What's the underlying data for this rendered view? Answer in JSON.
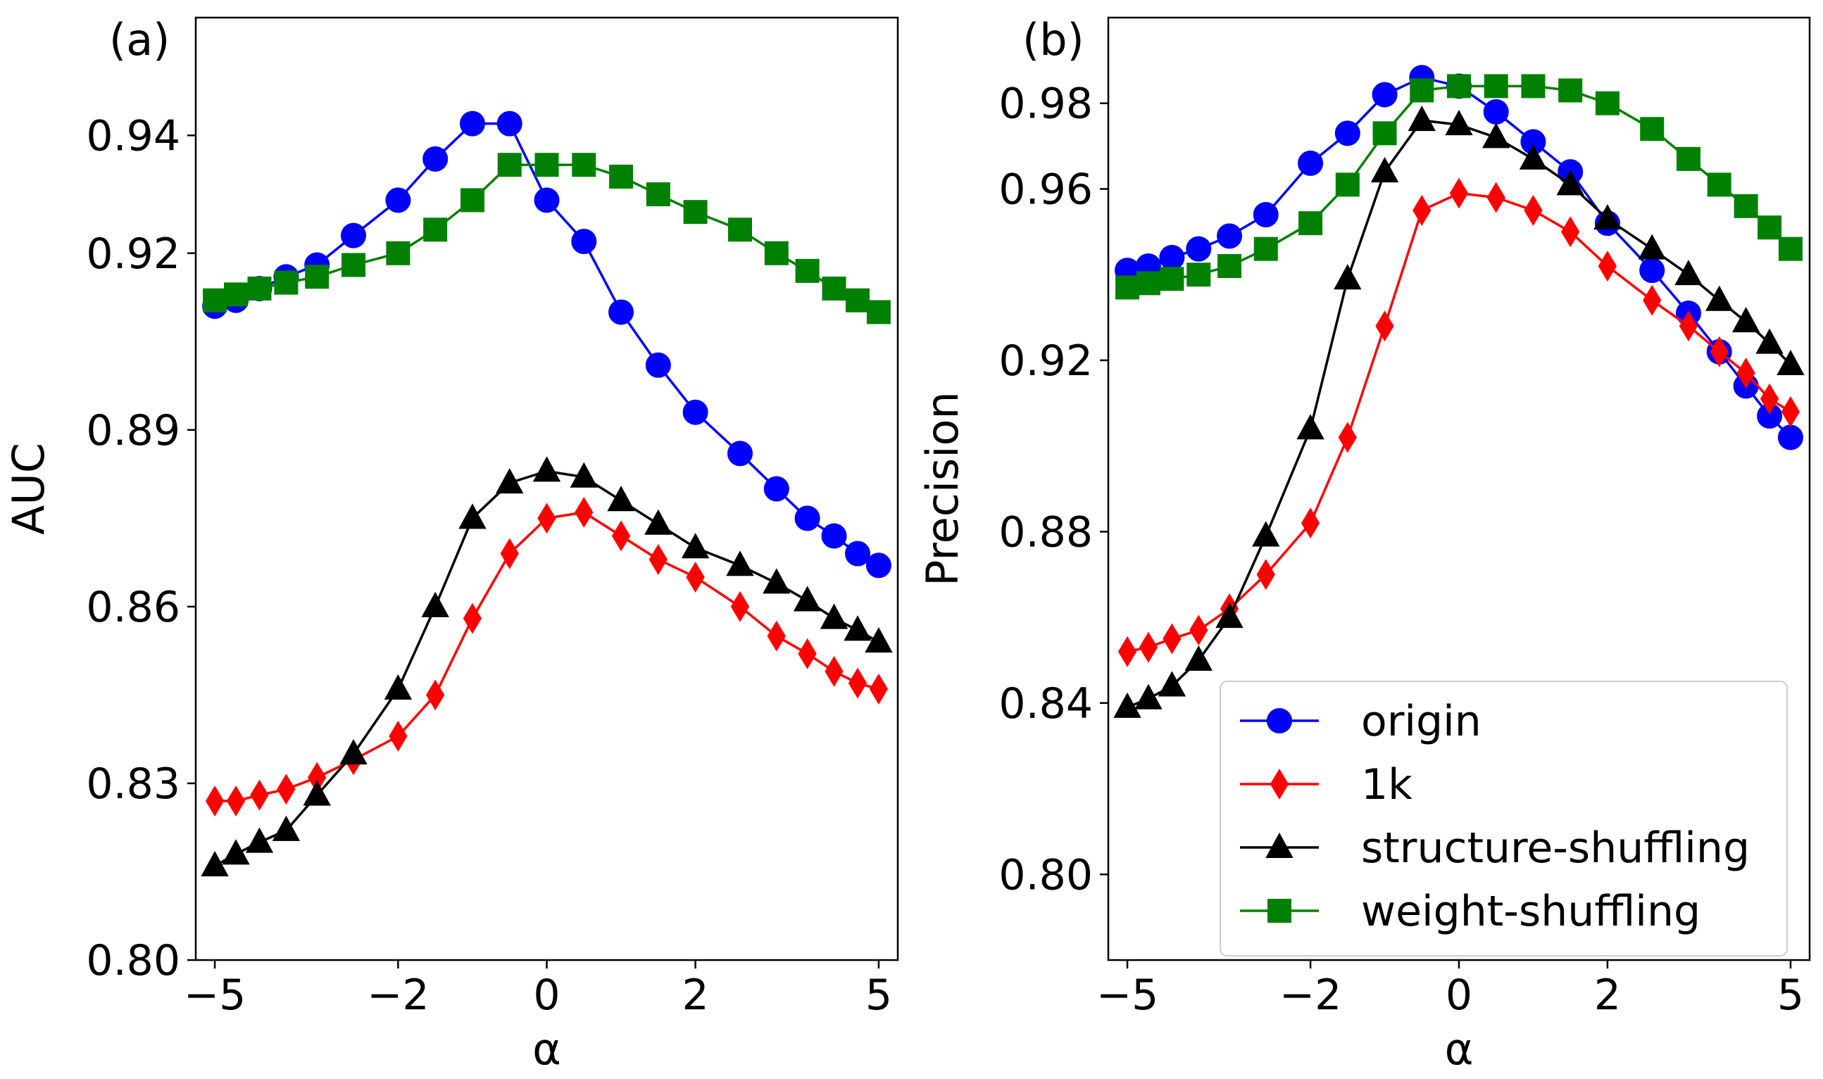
{
  "chart_data": [
    {
      "type": "line",
      "panel_label": "(a)",
      "xlabel": "α",
      "ylabel": "AUC",
      "xlim": [
        -5.5,
        5.5
      ],
      "ylim": [
        0.8,
        0.96
      ],
      "xticks": [
        -5,
        -2,
        0,
        2,
        5
      ],
      "xtick_labels": [
        "−5",
        "−2",
        "0",
        "2",
        "5"
      ],
      "yticks": [
        0.8,
        0.83,
        0.86,
        0.89,
        0.92,
        0.94
      ],
      "ytick_labels": [
        "0.80",
        "0.83",
        "0.86",
        "0.89",
        "0.92",
        "0.94"
      ],
      "scale": "symlog",
      "grid": false,
      "x": [
        -5,
        -4.5,
        -4,
        -3.5,
        -3,
        -2.5,
        -2,
        -1.5,
        -1,
        -0.5,
        0,
        0.5,
        1,
        1.5,
        2,
        2.5,
        3,
        3.5,
        4,
        4.5,
        5
      ],
      "series": [
        {
          "name": "origin",
          "color": "#0000ff",
          "marker": "circle",
          "values": [
            0.911,
            0.912,
            0.914,
            0.916,
            0.918,
            0.923,
            0.929,
            0.936,
            0.942,
            0.942,
            0.929,
            0.922,
            0.91,
            0.901,
            0.893,
            0.886,
            0.88,
            0.875,
            0.872,
            0.869,
            0.867
          ]
        },
        {
          "name": "1k",
          "color": "#ff0000",
          "marker": "diamond",
          "values": [
            0.827,
            0.827,
            0.828,
            0.829,
            0.831,
            0.834,
            0.838,
            0.845,
            0.858,
            0.869,
            0.875,
            0.876,
            0.872,
            0.868,
            0.865,
            0.86,
            0.855,
            0.852,
            0.849,
            0.847,
            0.846
          ]
        },
        {
          "name": "structure-shuffling",
          "color": "#000000",
          "marker": "triangle",
          "values": [
            0.816,
            0.818,
            0.82,
            0.822,
            0.828,
            0.835,
            0.846,
            0.86,
            0.875,
            0.881,
            0.883,
            0.882,
            0.878,
            0.874,
            0.87,
            0.867,
            0.864,
            0.861,
            0.858,
            0.856,
            0.854
          ]
        },
        {
          "name": "weight-shuffling",
          "color": "#008000",
          "marker": "square",
          "values": [
            0.912,
            0.913,
            0.914,
            0.915,
            0.916,
            0.918,
            0.92,
            0.924,
            0.929,
            0.935,
            0.935,
            0.935,
            0.933,
            0.93,
            0.927,
            0.924,
            0.92,
            0.917,
            0.914,
            0.912,
            0.91
          ]
        }
      ]
    },
    {
      "type": "line",
      "panel_label": "(b)",
      "xlabel": "α",
      "ylabel": "Precision",
      "xlim": [
        -5.5,
        5.5
      ],
      "ylim": [
        0.78,
        1.0
      ],
      "xticks": [
        -5,
        -2,
        0,
        2,
        5
      ],
      "xtick_labels": [
        "−5",
        "−2",
        "0",
        "2",
        "5"
      ],
      "yticks": [
        0.8,
        0.84,
        0.88,
        0.92,
        0.96,
        0.98
      ],
      "ytick_labels": [
        "0.80",
        "0.84",
        "0.88",
        "0.92",
        "0.96",
        "0.98"
      ],
      "scale": "symlog",
      "grid": false,
      "legend_position": "bottom-right",
      "x": [
        -5,
        -4.5,
        -4,
        -3.5,
        -3,
        -2.5,
        -2,
        -1.5,
        -1,
        -0.5,
        0,
        0.5,
        1,
        1.5,
        2,
        2.5,
        3,
        3.5,
        4,
        4.5,
        5
      ],
      "series": [
        {
          "name": "origin",
          "color": "#0000ff",
          "marker": "circle",
          "values": [
            0.941,
            0.942,
            0.944,
            0.946,
            0.949,
            0.954,
            0.966,
            0.973,
            0.982,
            0.986,
            0.984,
            0.978,
            0.971,
            0.964,
            0.952,
            0.941,
            0.931,
            0.922,
            0.914,
            0.907,
            0.902
          ]
        },
        {
          "name": "1k",
          "color": "#ff0000",
          "marker": "diamond",
          "values": [
            0.852,
            0.853,
            0.855,
            0.857,
            0.862,
            0.87,
            0.882,
            0.902,
            0.928,
            0.955,
            0.959,
            0.958,
            0.955,
            0.95,
            0.942,
            0.934,
            0.928,
            0.922,
            0.917,
            0.911,
            0.908
          ]
        },
        {
          "name": "structure-shuffling",
          "color": "#000000",
          "marker": "triangle",
          "values": [
            0.839,
            0.841,
            0.844,
            0.85,
            0.86,
            0.879,
            0.904,
            0.939,
            0.964,
            0.976,
            0.975,
            0.972,
            0.967,
            0.961,
            0.953,
            0.946,
            0.94,
            0.934,
            0.929,
            0.924,
            0.919
          ]
        },
        {
          "name": "weight-shuffling",
          "color": "#008000",
          "marker": "square",
          "values": [
            0.937,
            0.938,
            0.939,
            0.94,
            0.942,
            0.946,
            0.952,
            0.961,
            0.973,
            0.983,
            0.984,
            0.984,
            0.984,
            0.983,
            0.98,
            0.974,
            0.967,
            0.961,
            0.956,
            0.951,
            0.946
          ]
        }
      ]
    }
  ]
}
